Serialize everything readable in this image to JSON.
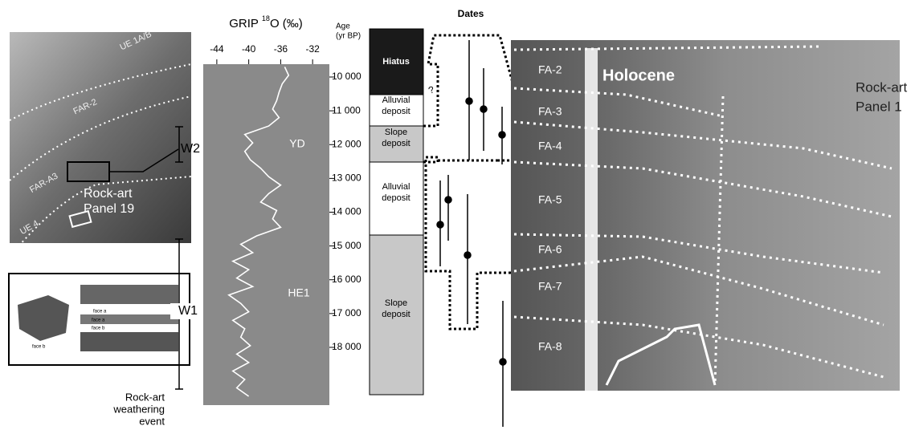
{
  "left_photo": {
    "labels": [
      "UE 1A/B",
      "FAR-2",
      "FAR-A3",
      "UE 4"
    ],
    "panel_label": [
      "Rock-art",
      "Panel 19"
    ]
  },
  "inset": {
    "labels": [
      "face a",
      "face b",
      "face a",
      "face b"
    ]
  },
  "weathering": {
    "events": [
      "W2",
      "W1"
    ],
    "caption": [
      "Rock-art",
      "weathering",
      "event"
    ]
  },
  "grip": {
    "title": "GRIP",
    "isotope": "18",
    "title_rest": "O (‰)",
    "xlim": [
      -45.7,
      -29.9
    ],
    "xticks": [
      -44,
      -40,
      -36,
      -32
    ],
    "ylim": [
      9620,
      19710
    ],
    "yticks": [
      {
        "value": 10000,
        "label": "10 000"
      },
      {
        "value": 11000,
        "label": "11 000"
      },
      {
        "value": 12000,
        "label": "12 000"
      },
      {
        "value": 13000,
        "label": "13 000"
      },
      {
        "value": 14000,
        "label": "14 000"
      },
      {
        "value": 15000,
        "label": "15 000"
      },
      {
        "value": 16000,
        "label": "16 000"
      },
      {
        "value": 17000,
        "label": "17 000"
      },
      {
        "value": 18000,
        "label": "18 000"
      }
    ],
    "age": [
      9700,
      9950,
      10200,
      10450,
      10700,
      10950,
      11200,
      11450,
      11700,
      11950,
      12200,
      12450,
      12700,
      12950,
      13200,
      13450,
      13700,
      13950,
      14200,
      14450,
      14700,
      14950,
      15200,
      15450,
      15700,
      15950,
      16200,
      16450,
      16700,
      16950,
      17200,
      17450,
      17700,
      17950,
      18200,
      18450,
      18700,
      18950,
      19200,
      19450
    ],
    "d18o": [
      -35.5,
      -35,
      -35.8,
      -36.2,
      -36.5,
      -37,
      -36.2,
      -37.5,
      -40.5,
      -39.5,
      -40.5,
      -39.8,
      -38.5,
      -37.5,
      -36,
      -37.5,
      -38.5,
      -36.5,
      -37,
      -36,
      -39,
      -41,
      -39.5,
      -42,
      -40,
      -41.5,
      -39.5,
      -42.5,
      -41,
      -40,
      -42,
      -40.5,
      -41,
      -39.8,
      -41.5,
      -40,
      -42,
      -40.5,
      -41.5,
      -40
    ],
    "annotations": [
      "YD",
      "HE1"
    ]
  },
  "stratigraphy": {
    "age_label": [
      "Age",
      "(yr BP)"
    ],
    "dates_title": "Dates",
    "query": "?",
    "units": [
      [
        "Hiatus"
      ],
      [
        "Alluvial",
        "deposit"
      ],
      [
        "Slope",
        "deposit"
      ],
      [
        "Alluvial",
        "deposit"
      ],
      [
        "Slope",
        "deposit"
      ]
    ]
  },
  "right_photo": {
    "units": [
      "FA-2",
      "FA-3",
      "FA-4",
      "FA-5",
      "FA-6",
      "FA-7",
      "FA-8"
    ],
    "period": "Holocene",
    "panel_label": [
      "Rock-art",
      "Panel 1"
    ]
  }
}
